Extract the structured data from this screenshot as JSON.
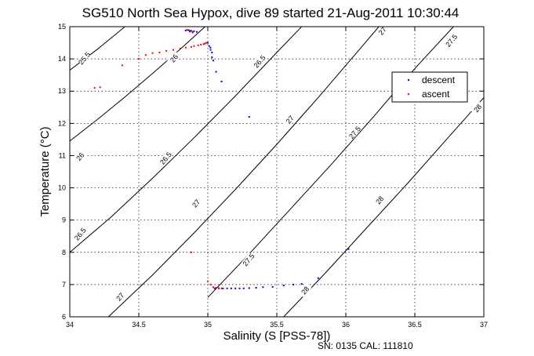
{
  "chart_data": {
    "type": "scatter",
    "title": "SG510 North Sea Hypox, dive 89 started 21-Aug-2011 10:30:44",
    "xlabel": "Salinity (S [PSS-78])",
    "ylabel": "Temperature (°C)",
    "xlim": [
      34,
      37
    ],
    "ylim": [
      6,
      15
    ],
    "x_ticks": [
      "34",
      "34.5",
      "35",
      "35.5",
      "36",
      "36.5",
      "37"
    ],
    "y_ticks": [
      "6",
      "7",
      "8",
      "9",
      "10",
      "11",
      "12",
      "13",
      "14",
      "15"
    ],
    "grid": true,
    "legend_position": "top-right",
    "footer": "SN: 0135  CAL: 111810",
    "contours": [
      {
        "label": "25.5",
        "points": [
          [
            34.0,
            13.65
          ],
          [
            34.2,
            14.3
          ],
          [
            34.4,
            15.0
          ]
        ],
        "label_at": [
          34.11,
          14.0
        ]
      },
      {
        "label": "26",
        "points": [
          [
            34.0,
            11.45
          ],
          [
            34.2,
            12.12
          ],
          [
            34.4,
            12.82
          ],
          [
            34.6,
            13.55
          ],
          [
            34.8,
            14.3
          ],
          [
            34.98,
            15.0
          ]
        ],
        "label_at": [
          34.08,
          10.95
        ]
      },
      {
        "label": "26",
        "points": [],
        "label_at": [
          34.76,
          14.0
        ]
      },
      {
        "label": "26.5",
        "points": [
          [
            34.0,
            8.0
          ],
          [
            34.3,
            9.1
          ],
          [
            34.6,
            10.3
          ],
          [
            34.9,
            11.55
          ],
          [
            35.2,
            12.85
          ],
          [
            35.5,
            14.2
          ],
          [
            35.68,
            15.0
          ]
        ],
        "label_at": [
          34.08,
          8.55
        ]
      },
      {
        "label": "26.5",
        "points": [],
        "label_at": [
          34.7,
          10.9
        ]
      },
      {
        "label": "26.5",
        "points": [],
        "label_at": [
          35.38,
          13.9
        ]
      },
      {
        "label": "27",
        "points": [
          [
            34.28,
            6.0
          ],
          [
            34.6,
            7.3
          ],
          [
            34.9,
            8.6
          ],
          [
            35.2,
            9.95
          ],
          [
            35.5,
            11.35
          ],
          [
            35.8,
            12.8
          ],
          [
            36.1,
            14.3
          ],
          [
            36.24,
            15.0
          ]
        ],
        "label_at": [
          34.37,
          6.6
        ]
      },
      {
        "label": "27",
        "points": [],
        "label_at": [
          34.92,
          9.5
        ]
      },
      {
        "label": "27",
        "points": [],
        "label_at": [
          35.6,
          12.1
        ]
      },
      {
        "label": "27",
        "points": [],
        "label_at": [
          36.27,
          14.85
        ]
      },
      {
        "label": "27.5",
        "points": [
          [
            35.0,
            6.6
          ],
          [
            35.3,
            7.95
          ],
          [
            35.6,
            9.35
          ],
          [
            35.9,
            10.75
          ],
          [
            36.2,
            12.2
          ],
          [
            36.5,
            13.7
          ],
          [
            36.78,
            15.0
          ]
        ],
        "label_at": [
          35.3,
          7.75
        ]
      },
      {
        "label": "27.5",
        "points": [],
        "label_at": [
          36.07,
          11.7
        ]
      },
      {
        "label": "27.5",
        "points": [],
        "label_at": [
          36.77,
          14.55
        ]
      },
      {
        "label": "28",
        "points": [
          [
            35.55,
            6.0
          ],
          [
            35.85,
            7.35
          ],
          [
            36.15,
            8.75
          ],
          [
            36.45,
            10.15
          ],
          [
            36.75,
            11.6
          ],
          [
            37.0,
            12.8
          ]
        ],
        "label_at": [
          35.71,
          6.8
        ]
      },
      {
        "label": "28",
        "points": [],
        "label_at": [
          36.25,
          9.6
        ]
      },
      {
        "label": "28",
        "points": [],
        "label_at": [
          36.96,
          12.45
        ]
      }
    ],
    "series": [
      {
        "name": "descent",
        "color": "#0000ff",
        "points": [
          [
            34.84,
            14.88
          ],
          [
            34.86,
            14.89
          ],
          [
            34.88,
            14.87
          ],
          [
            34.9,
            14.86
          ],
          [
            34.92,
            14.84
          ],
          [
            34.89,
            14.82
          ],
          [
            34.87,
            14.85
          ],
          [
            35.0,
            14.5
          ],
          [
            35.01,
            14.4
          ],
          [
            35.02,
            14.35
          ],
          [
            35.02,
            14.28
          ],
          [
            35.03,
            14.2
          ],
          [
            35.03,
            14.05
          ],
          [
            35.04,
            13.95
          ],
          [
            35.06,
            13.6
          ],
          [
            35.1,
            13.3
          ],
          [
            35.3,
            12.2
          ],
          [
            36.02,
            8.1
          ],
          [
            35.05,
            6.88
          ],
          [
            35.08,
            6.88
          ],
          [
            35.11,
            6.88
          ],
          [
            35.14,
            6.88
          ],
          [
            35.17,
            6.88
          ],
          [
            35.2,
            6.88
          ],
          [
            35.23,
            6.88
          ],
          [
            35.26,
            6.88
          ],
          [
            35.3,
            6.89
          ],
          [
            35.35,
            6.9
          ],
          [
            35.4,
            6.92
          ],
          [
            35.47,
            6.93
          ],
          [
            35.55,
            6.97
          ],
          [
            35.62,
            7.0
          ],
          [
            35.68,
            7.02
          ],
          [
            35.8,
            7.2
          ]
        ]
      },
      {
        "name": "ascent",
        "color": "#ff0000",
        "points": [
          [
            34.18,
            13.1
          ],
          [
            34.22,
            13.12
          ],
          [
            34.38,
            13.8
          ],
          [
            34.5,
            14.0
          ],
          [
            34.55,
            14.12
          ],
          [
            34.6,
            14.18
          ],
          [
            34.65,
            14.2
          ],
          [
            34.7,
            14.25
          ],
          [
            34.75,
            14.28
          ],
          [
            34.8,
            14.32
          ],
          [
            34.84,
            14.35
          ],
          [
            34.88,
            14.37
          ],
          [
            34.9,
            14.4
          ],
          [
            34.93,
            14.42
          ],
          [
            34.95,
            14.44
          ],
          [
            34.97,
            14.46
          ],
          [
            34.98,
            14.48
          ],
          [
            34.99,
            14.5
          ],
          [
            34.85,
            14.9
          ],
          [
            34.87,
            14.88
          ],
          [
            34.89,
            14.84
          ],
          [
            34.88,
            8.0
          ],
          [
            35.0,
            7.1
          ],
          [
            35.02,
            7.0
          ],
          [
            35.04,
            6.92
          ],
          [
            35.06,
            6.9
          ],
          [
            35.08,
            6.89
          ],
          [
            35.1,
            6.88
          ]
        ]
      }
    ]
  }
}
